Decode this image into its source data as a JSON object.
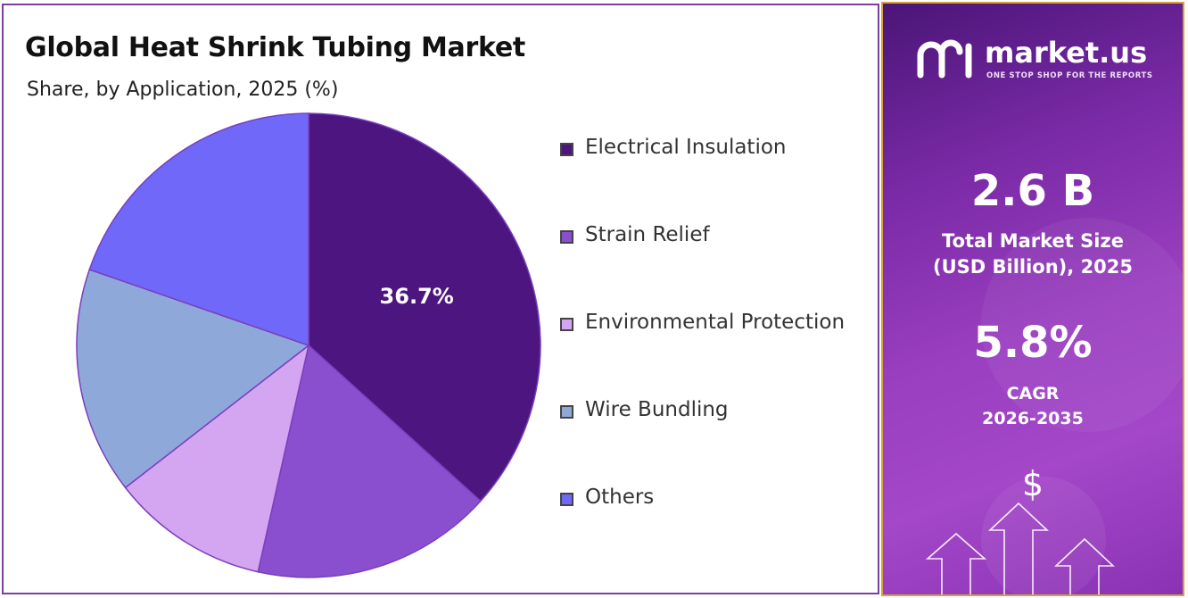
{
  "chart_data": {
    "type": "pie",
    "title": "Global Heat Shrink Tubing Market",
    "subtitle": "Share, by Application, 2025 (%)",
    "categories": [
      "Electrical Insulation",
      "Strain Relief",
      "Environmental Protection",
      "Wire Bundling",
      "Others"
    ],
    "values": [
      36.7,
      16.8,
      11.0,
      15.8,
      19.7
    ],
    "colors": [
      "#4d1580",
      "#8a4fcf",
      "#d4a5f0",
      "#8fa8da",
      "#7068f8"
    ],
    "data_labels": [
      "36.7%",
      "",
      "",
      "",
      ""
    ],
    "legend_position": "right"
  },
  "sidebar": {
    "brand_name": "market.us",
    "brand_tagline": "ONE STOP SHOP FOR THE REPORTS",
    "market_size_value": "2.6 B",
    "market_size_label_line1": "Total Market Size",
    "market_size_label_line2": "(USD Billion), 2025",
    "cagr_value": "5.8%",
    "cagr_label_line1": "CAGR",
    "cagr_label_line2": "2026-2035",
    "dollar_symbol": "$"
  }
}
